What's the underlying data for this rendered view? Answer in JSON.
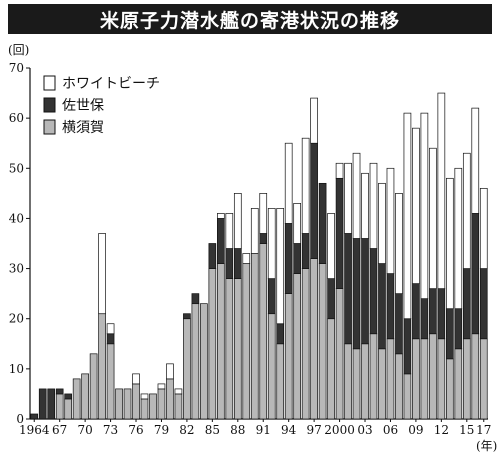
{
  "chart_data": {
    "type": "bar",
    "stacked": true,
    "title": "米原子力潜水艦の寄港状況の推移",
    "ylabel": "(回)",
    "xlabel": "(年)",
    "ylim": [
      0,
      70
    ],
    "yticks": [
      0,
      10,
      20,
      30,
      40,
      50,
      60,
      70
    ],
    "grid": false,
    "legend_position": "top-left",
    "categories": [
      1964,
      1965,
      1966,
      1967,
      1968,
      1969,
      1970,
      1971,
      1972,
      1973,
      1974,
      1975,
      1976,
      1977,
      1978,
      1979,
      1980,
      1981,
      1982,
      1983,
      1984,
      1985,
      1986,
      1987,
      1988,
      1989,
      1990,
      1991,
      1992,
      1993,
      1994,
      1995,
      1996,
      1997,
      1998,
      1999,
      2000,
      2001,
      2002,
      2003,
      2004,
      2005,
      2006,
      2007,
      2008,
      2009,
      2010,
      2011,
      2012,
      2013,
      2014,
      2015,
      2016,
      2017
    ],
    "x_tick_labels": [
      {
        "year": 1964,
        "label": "1964"
      },
      {
        "year": 1967,
        "label": "67"
      },
      {
        "year": 1970,
        "label": "70"
      },
      {
        "year": 1973,
        "label": "73"
      },
      {
        "year": 1976,
        "label": "76"
      },
      {
        "year": 1979,
        "label": "79"
      },
      {
        "year": 1982,
        "label": "82"
      },
      {
        "year": 1985,
        "label": "85"
      },
      {
        "year": 1988,
        "label": "88"
      },
      {
        "year": 1991,
        "label": "91"
      },
      {
        "year": 1994,
        "label": "94"
      },
      {
        "year": 1997,
        "label": "97"
      },
      {
        "year": 2000,
        "label": "2000"
      },
      {
        "year": 2003,
        "label": "03"
      },
      {
        "year": 2006,
        "label": "06"
      },
      {
        "year": 2009,
        "label": "09"
      },
      {
        "year": 2012,
        "label": "12"
      },
      {
        "year": 2015,
        "label": "15"
      },
      {
        "year": 2017,
        "label": "17"
      }
    ],
    "series": [
      {
        "name": "横須賀",
        "color": "#b8b8b8",
        "values": [
          0,
          0,
          0,
          5,
          4,
          8,
          9,
          13,
          21,
          15,
          6,
          6,
          7,
          4,
          5,
          6,
          8,
          5,
          20,
          23,
          23,
          30,
          31,
          28,
          28,
          31,
          33,
          35,
          21,
          15,
          25,
          29,
          30,
          32,
          31,
          20,
          26,
          15,
          14,
          15,
          17,
          14,
          16,
          13,
          9,
          16,
          16,
          17,
          16,
          12,
          14,
          16,
          17,
          16
        ]
      },
      {
        "name": "佐世保",
        "color": "#333333",
        "values": [
          1,
          6,
          6,
          1,
          1,
          0,
          0,
          0,
          0,
          2,
          0,
          0,
          0,
          0,
          0,
          0,
          0,
          0,
          1,
          2,
          0,
          5,
          9,
          6,
          6,
          0,
          0,
          2,
          7,
          4,
          14,
          6,
          7,
          23,
          16,
          8,
          22,
          22,
          22,
          21,
          17,
          17,
          13,
          12,
          11,
          11,
          8,
          9,
          10,
          10,
          8,
          14,
          24,
          14
        ]
      },
      {
        "name": "ホワイトビーチ",
        "color": "#ffffff",
        "values": [
          0,
          0,
          0,
          0,
          0,
          0,
          0,
          0,
          16,
          2,
          0,
          0,
          2,
          1,
          0,
          1,
          3,
          1,
          0,
          0,
          0,
          0,
          1,
          7,
          11,
          2,
          9,
          8,
          14,
          23,
          16,
          8,
          19,
          9,
          0,
          13,
          3,
          14,
          17,
          13,
          17,
          16,
          21,
          20,
          41,
          31,
          37,
          28,
          39,
          26,
          28,
          23,
          21,
          16
        ]
      }
    ]
  }
}
